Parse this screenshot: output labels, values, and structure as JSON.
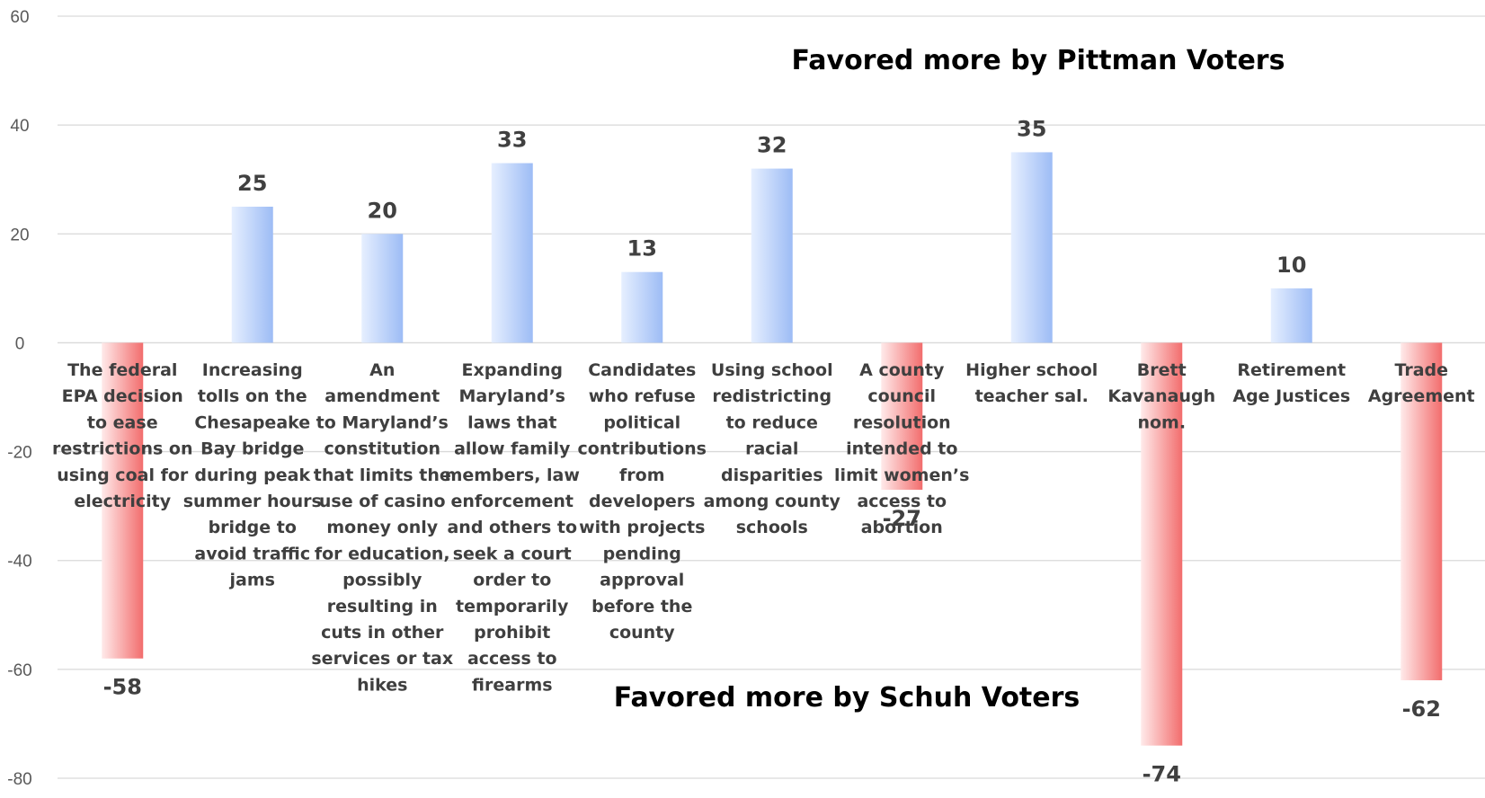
{
  "chart_data": {
    "type": "bar",
    "ylim": [
      -80,
      60
    ],
    "yticks": [
      "60",
      "40",
      "20",
      "0",
      "-20",
      "-40",
      "-60",
      "-80"
    ],
    "grid": true,
    "categories": [
      [
        "The federal",
        "EPA decision",
        "to ease",
        "restrictions on",
        "using coal for",
        "electricity"
      ],
      [
        "Increasing",
        "tolls on the",
        "Chesapeake",
        "Bay bridge",
        "during peak",
        "summer hours",
        "bridge to",
        "avoid traffic",
        "jams"
      ],
      [
        "An",
        "amendment",
        "to Maryland’s",
        "constitution",
        "that limits the",
        "use of casino",
        "money only",
        "for education,",
        "possibly",
        "resulting in",
        "cuts in other",
        "services or tax",
        "hikes"
      ],
      [
        "Expanding",
        "Maryland’s",
        "laws that",
        "allow family",
        "members, law",
        "enforcement",
        "and others to",
        "seek a court",
        "order to",
        "temporarily",
        "prohibit",
        "access to",
        "firearms"
      ],
      [
        "Candidates",
        "who refuse",
        "political",
        "contributions",
        "from",
        "developers",
        "with projects",
        "pending",
        "approval",
        "before the",
        "county"
      ],
      [
        "Using school",
        "redistricting",
        "to reduce",
        "racial",
        "disparities",
        "among county",
        "schools"
      ],
      [
        "A county",
        "council",
        "resolution",
        "intended to",
        "limit women’s",
        "access to",
        "abortion"
      ],
      [
        "Higher school",
        "teacher sal."
      ],
      [
        "Brett",
        "Kavanaugh",
        "nom."
      ],
      [
        "Retirement",
        "Age Justices"
      ],
      [
        "Trade",
        "Agreement"
      ]
    ],
    "values": [
      -58,
      25,
      20,
      33,
      13,
      32,
      -27,
      35,
      -74,
      10,
      -62
    ],
    "data_labels": [
      "-58",
      "25",
      "20",
      "33",
      "13",
      "32",
      "-27",
      "35",
      "-74",
      "10",
      "-62"
    ],
    "annotations": [
      "Favored more by Pittman Voters",
      "Favored more by Schuh Voters"
    ],
    "colors": {
      "positive_light": "#e6efff",
      "positive_dark": "#9dbcf5",
      "negative_light": "#ffeaea",
      "negative_dark": "#f26d6d",
      "grid": "#d9d9d9"
    }
  }
}
